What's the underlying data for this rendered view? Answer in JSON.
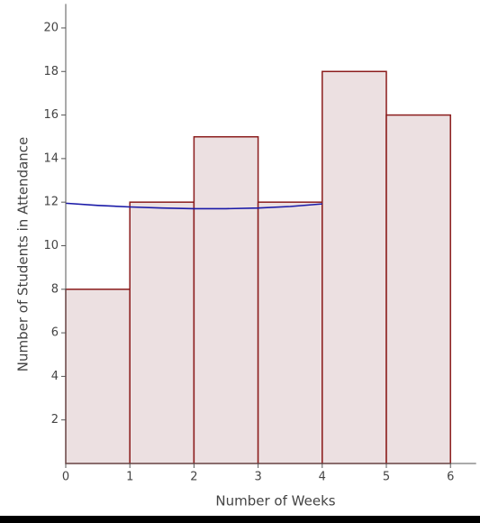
{
  "chart_data": {
    "type": "histogram",
    "x_label": "Number of Weeks",
    "y_label": "Number of Students in Attendance",
    "bins": [
      0,
      1,
      2,
      3,
      4,
      5,
      6
    ],
    "counts": [
      8,
      12,
      15,
      12,
      18,
      16
    ],
    "color": "#ece0e1",
    "edge_color": "#8b1c1c",
    "curve": {
      "color": "#1a1aa8",
      "x": [
        0,
        0.5,
        1,
        1.5,
        2,
        2.5,
        3,
        3.5,
        4
      ],
      "y": [
        11.95,
        11.85,
        11.78,
        11.73,
        11.7,
        11.7,
        11.73,
        11.8,
        11.92
      ]
    },
    "xlim": [
      0,
      6.4
    ],
    "ylim": [
      0,
      21.1
    ],
    "xticks": [
      0,
      1,
      2,
      3,
      4,
      5,
      6
    ],
    "yticks": [
      2,
      4,
      6,
      8,
      10,
      12,
      14,
      16,
      18,
      20
    ]
  }
}
